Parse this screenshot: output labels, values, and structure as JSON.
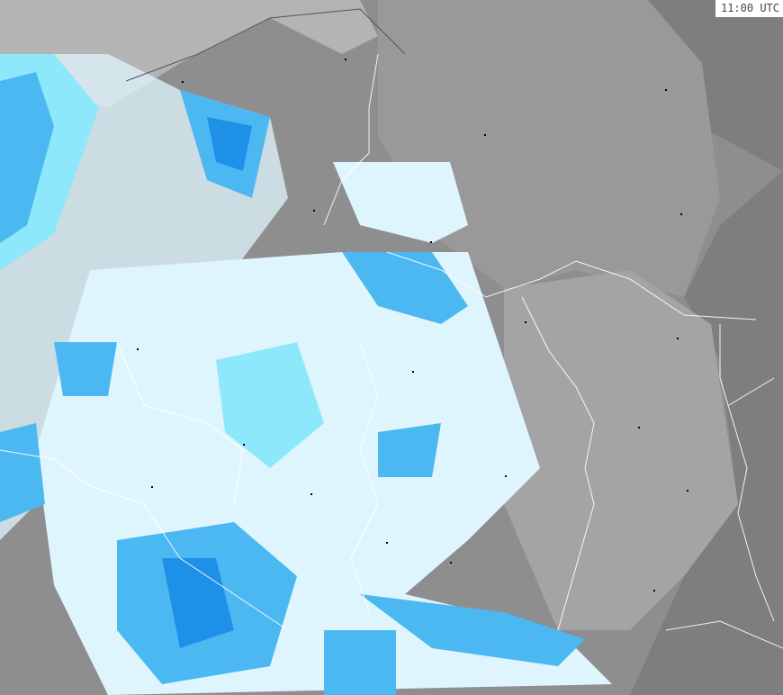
{
  "map": {
    "timestamp": "11:00 UTC",
    "colors": {
      "land": "#9a9a9a",
      "land_dark": "#7c7c7c",
      "sea": "#b8b8b8",
      "light_precip": "#dff5fd",
      "cyan_precip": "#8ee8fb",
      "medium_precip": "#4cb8f2",
      "heavy_precip": "#1e90e8",
      "borders": "#ffffff"
    }
  }
}
